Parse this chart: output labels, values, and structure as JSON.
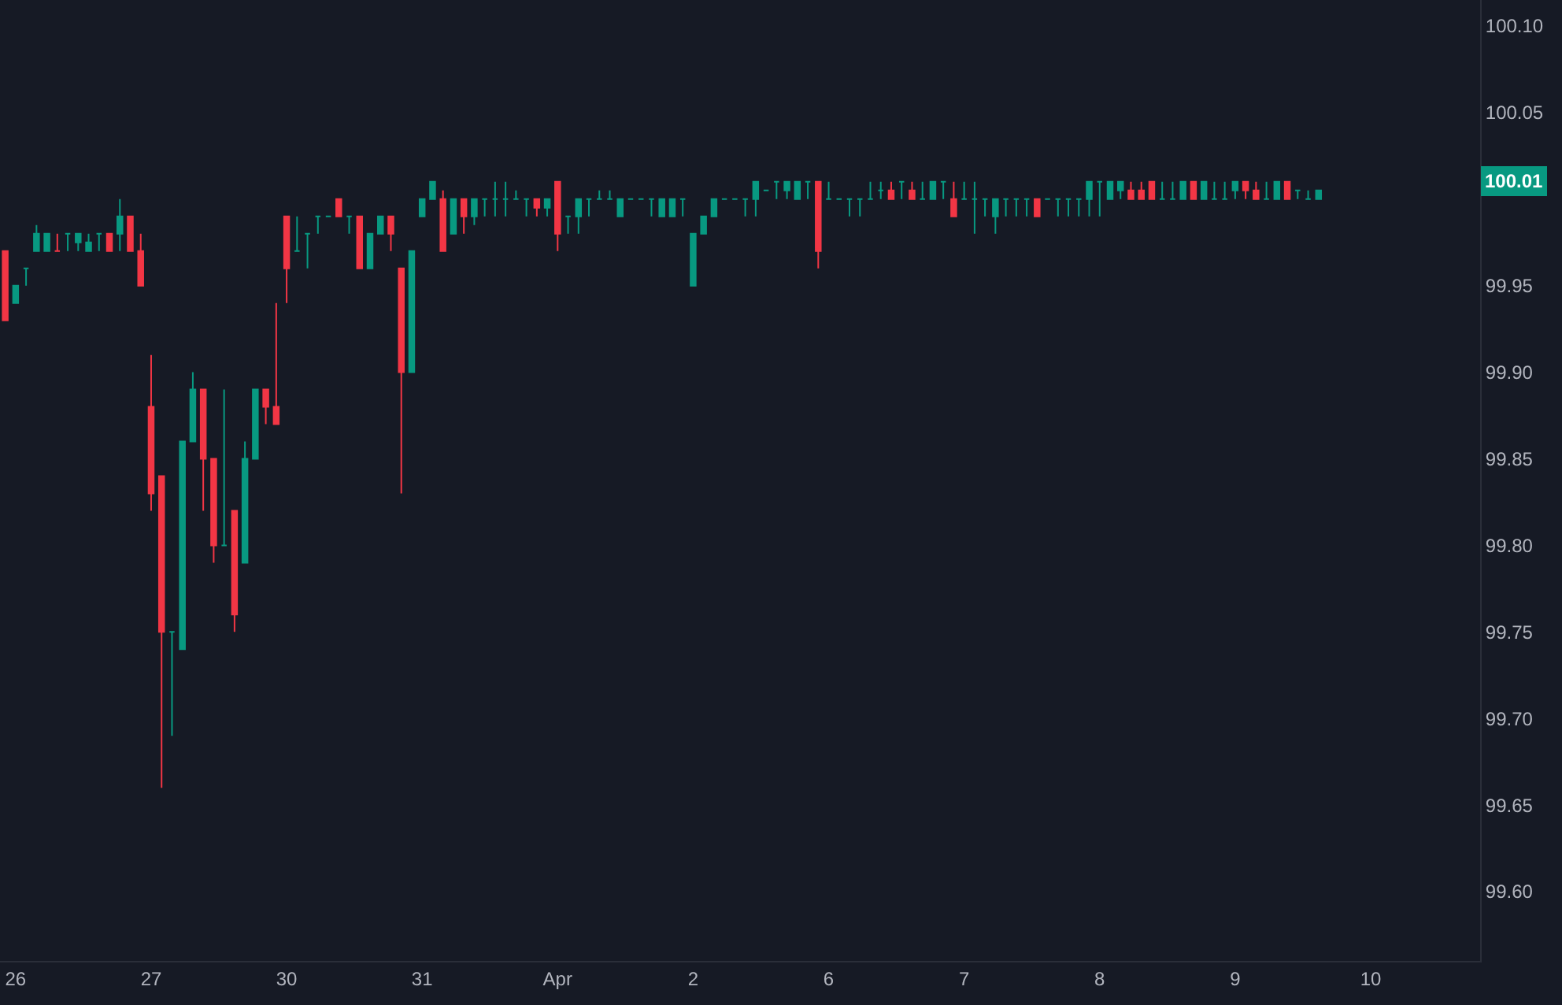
{
  "chart_data": {
    "type": "candlestick",
    "categories": [
      null,
      "26",
      null,
      null,
      null,
      null,
      null,
      null,
      null,
      null,
      null,
      null,
      null,
      null,
      "27",
      null,
      null,
      null,
      null,
      null,
      null,
      null,
      null,
      null,
      null,
      null,
      null,
      "30",
      null,
      null,
      null,
      null,
      null,
      null,
      null,
      null,
      null,
      null,
      null,
      null,
      "31",
      null,
      null,
      null,
      null,
      null,
      null,
      null,
      null,
      null,
      null,
      null,
      null,
      "Apr",
      null,
      null,
      null,
      null,
      null,
      null,
      null,
      null,
      null,
      null,
      null,
      null,
      "2",
      null,
      null,
      null,
      null,
      null,
      null,
      null,
      null,
      null,
      null,
      null,
      null,
      "6",
      null,
      null,
      null,
      null,
      null,
      null,
      null,
      null,
      null,
      null,
      null,
      null,
      "7",
      null,
      null,
      null,
      null,
      null,
      null,
      null,
      null,
      null,
      null,
      null,
      null,
      "8",
      null,
      null,
      null,
      null,
      null,
      null,
      null,
      null,
      null,
      null,
      null,
      null,
      "9",
      null,
      null,
      null,
      null,
      null,
      null,
      null,
      null,
      null,
      null,
      null,
      null,
      "10",
      null,
      null,
      null,
      null,
      null,
      null,
      null,
      null,
      null,
      null
    ],
    "ohlc": [
      [
        99.97,
        99.97,
        99.93,
        99.93
      ],
      [
        99.94,
        99.95,
        99.94,
        99.95
      ],
      [
        99.96,
        99.96,
        99.95,
        99.96
      ],
      [
        99.97,
        99.985,
        99.97,
        99.98
      ],
      [
        99.97,
        99.98,
        99.97,
        99.98
      ],
      [
        99.97,
        99.98,
        99.97,
        99.97
      ],
      [
        99.98,
        99.98,
        99.97,
        99.98
      ],
      [
        99.975,
        99.98,
        99.97,
        99.98
      ],
      [
        99.97,
        99.98,
        99.97,
        99.975
      ],
      [
        99.98,
        99.98,
        99.97,
        99.98
      ],
      [
        99.98,
        99.98,
        99.97,
        99.97
      ],
      [
        99.98,
        100.0,
        99.97,
        99.99
      ],
      [
        99.99,
        99.99,
        99.97,
        99.97
      ],
      [
        99.97,
        99.98,
        99.95,
        99.95
      ],
      [
        99.88,
        99.91,
        99.82,
        99.83
      ],
      [
        99.84,
        99.84,
        99.66,
        99.75
      ],
      [
        99.75,
        99.75,
        99.69,
        99.75
      ],
      [
        99.74,
        99.86,
        99.74,
        99.86
      ],
      [
        99.86,
        99.9,
        99.86,
        99.89
      ],
      [
        99.89,
        99.89,
        99.82,
        99.85
      ],
      [
        99.85,
        99.85,
        99.79,
        99.8
      ],
      [
        99.8,
        99.89,
        99.8,
        99.8
      ],
      [
        99.82,
        99.82,
        99.75,
        99.76
      ],
      [
        99.79,
        99.86,
        99.79,
        99.85
      ],
      [
        99.85,
        99.89,
        99.85,
        99.89
      ],
      [
        99.89,
        99.89,
        99.87,
        99.88
      ],
      [
        99.88,
        99.94,
        99.87,
        99.87
      ],
      [
        99.99,
        99.99,
        99.94,
        99.96
      ],
      [
        99.97,
        99.99,
        99.97,
        99.97
      ],
      [
        99.98,
        99.98,
        99.96,
        99.98
      ],
      [
        99.99,
        99.99,
        99.98,
        99.99
      ],
      [
        99.99,
        99.99,
        99.99,
        99.99
      ],
      [
        100.0,
        100.0,
        99.99,
        99.99
      ],
      [
        99.99,
        99.99,
        99.98,
        99.99
      ],
      [
        99.99,
        99.99,
        99.96,
        99.96
      ],
      [
        99.96,
        99.98,
        99.96,
        99.98
      ],
      [
        99.98,
        99.99,
        99.98,
        99.99
      ],
      [
        99.99,
        99.99,
        99.97,
        99.98
      ],
      [
        99.96,
        99.96,
        99.83,
        99.9
      ],
      [
        99.9,
        99.97,
        99.9,
        99.97
      ],
      [
        99.99,
        100.0,
        99.99,
        100.0
      ],
      [
        100.0,
        100.01,
        100.0,
        100.01
      ],
      [
        100.0,
        100.005,
        99.97,
        99.97
      ],
      [
        99.98,
        100.0,
        99.98,
        100.0
      ],
      [
        100.0,
        100.0,
        99.98,
        99.99
      ],
      [
        99.99,
        100.0,
        99.985,
        100.0
      ],
      [
        100.0,
        100.0,
        99.99,
        100.0
      ],
      [
        100.0,
        100.01,
        99.99,
        100.0
      ],
      [
        100.0,
        100.01,
        99.99,
        100.0
      ],
      [
        100.0,
        100.005,
        100.0,
        100.0
      ],
      [
        100.0,
        100.0,
        99.99,
        100.0
      ],
      [
        100.0,
        100.0,
        99.99,
        99.995
      ],
      [
        99.995,
        100.0,
        99.99,
        100.0
      ],
      [
        100.01,
        100.01,
        99.97,
        99.98
      ],
      [
        99.99,
        99.99,
        99.98,
        99.99
      ],
      [
        99.99,
        100.0,
        99.98,
        100.0
      ],
      [
        100.0,
        100.0,
        99.99,
        100.0
      ],
      [
        100.0,
        100.005,
        100.0,
        100.0
      ],
      [
        100.0,
        100.005,
        100.0,
        100.0
      ],
      [
        99.99,
        100.0,
        99.99,
        100.0
      ],
      [
        100.0,
        100.0,
        100.0,
        100.0
      ],
      [
        100.0,
        100.0,
        100.0,
        100.0
      ],
      [
        100.0,
        100.0,
        99.99,
        100.0
      ],
      [
        99.99,
        100.0,
        99.99,
        100.0
      ],
      [
        99.99,
        100.0,
        99.99,
        100.0
      ],
      [
        100.0,
        100.0,
        99.99,
        100.0
      ],
      [
        99.95,
        99.98,
        99.95,
        99.98
      ],
      [
        99.98,
        99.99,
        99.98,
        99.99
      ],
      [
        99.99,
        100.0,
        99.99,
        100.0
      ],
      [
        100.0,
        100.0,
        100.0,
        100.0
      ],
      [
        100.0,
        100.0,
        100.0,
        100.0
      ],
      [
        100.0,
        100.0,
        99.99,
        100.0
      ],
      [
        100.0,
        100.01,
        99.99,
        100.01
      ],
      [
        100.005,
        100.005,
        100.005,
        100.005
      ],
      [
        100.01,
        100.01,
        100.0,
        100.01
      ],
      [
        100.005,
        100.01,
        100.0,
        100.01
      ],
      [
        100.0,
        100.01,
        100.0,
        100.01
      ],
      [
        100.01,
        100.01,
        100.0,
        100.01
      ],
      [
        100.01,
        100.01,
        99.96,
        99.97
      ],
      [
        100.0,
        100.01,
        100.0,
        100.0
      ],
      [
        100.0,
        100.0,
        100.0,
        100.0
      ],
      [
        100.0,
        100.0,
        99.99,
        100.0
      ],
      [
        100.0,
        100.0,
        99.99,
        100.0
      ],
      [
        100.0,
        100.01,
        100.0,
        100.0
      ],
      [
        100.005,
        100.01,
        100.0,
        100.005
      ],
      [
        100.005,
        100.01,
        100.0,
        100.0
      ],
      [
        100.01,
        100.01,
        100.0,
        100.01
      ],
      [
        100.005,
        100.01,
        100.0,
        100.0
      ],
      [
        100.0,
        100.01,
        100.0,
        100.0
      ],
      [
        100.0,
        100.01,
        100.0,
        100.01
      ],
      [
        100.01,
        100.01,
        100.0,
        100.01
      ],
      [
        100.0,
        100.01,
        99.99,
        99.99
      ],
      [
        100.0,
        100.01,
        100.0,
        100.0
      ],
      [
        100.0,
        100.01,
        99.98,
        100.0
      ],
      [
        100.0,
        100.0,
        99.99,
        100.0
      ],
      [
        99.99,
        100.0,
        99.98,
        100.0
      ],
      [
        100.0,
        100.0,
        99.99,
        100.0
      ],
      [
        100.0,
        100.0,
        99.99,
        100.0
      ],
      [
        100.0,
        100.0,
        99.99,
        100.0
      ],
      [
        100.0,
        100.0,
        99.99,
        99.99
      ],
      [
        100.0,
        100.0,
        100.0,
        100.0
      ],
      [
        100.0,
        100.0,
        99.99,
        100.0
      ],
      [
        100.0,
        100.0,
        99.99,
        100.0
      ],
      [
        100.0,
        100.0,
        99.99,
        100.0
      ],
      [
        100.0,
        100.01,
        99.99,
        100.01
      ],
      [
        100.01,
        100.01,
        99.99,
        100.01
      ],
      [
        100.0,
        100.01,
        100.0,
        100.01
      ],
      [
        100.005,
        100.01,
        100.0,
        100.01
      ],
      [
        100.005,
        100.01,
        100.0,
        100.0
      ],
      [
        100.005,
        100.01,
        100.0,
        100.0
      ],
      [
        100.01,
        100.01,
        100.0,
        100.0
      ],
      [
        100.0,
        100.01,
        100.0,
        100.0
      ],
      [
        100.0,
        100.01,
        100.0,
        100.0
      ],
      [
        100.0,
        100.01,
        100.0,
        100.01
      ],
      [
        100.01,
        100.01,
        100.0,
        100.0
      ],
      [
        100.0,
        100.01,
        100.0,
        100.01
      ],
      [
        100.0,
        100.01,
        100.0,
        100.0
      ],
      [
        100.0,
        100.01,
        100.0,
        100.0
      ],
      [
        100.005,
        100.01,
        100.0,
        100.01
      ],
      [
        100.01,
        100.01,
        100.0,
        100.005
      ],
      [
        100.005,
        100.01,
        100.0,
        100.0
      ],
      [
        100.0,
        100.01,
        100.0,
        100.0
      ],
      [
        100.0,
        100.01,
        100.0,
        100.01
      ],
      [
        100.01,
        100.01,
        100.0,
        100.0
      ],
      [
        100.005,
        100.005,
        100.0,
        100.005
      ],
      [
        100.0,
        100.005,
        100.0,
        100.0
      ],
      [
        100.0,
        100.005,
        100.0,
        100.005
      ],
      null,
      null,
      null,
      null,
      null,
      null,
      null,
      null,
      null,
      null,
      null,
      null,
      null,
      null,
      null
    ],
    "colors": [
      "#f23645",
      "#089981",
      "#089981",
      "#089981",
      "#089981",
      "#f23645",
      "#089981",
      "#089981",
      "#089981",
      "#089981",
      "#f23645",
      "#089981",
      "#f23645",
      "#f23645",
      "#f23645",
      "#f23645",
      "#089981",
      "#089981",
      "#089981",
      "#f23645",
      "#f23645",
      "#089981",
      "#f23645",
      "#089981",
      "#089981",
      "#f23645",
      "#f23645",
      "#f23645",
      "#089981",
      "#089981",
      "#089981",
      "#089981",
      "#f23645",
      "#089981",
      "#f23645",
      "#089981",
      "#089981",
      "#f23645",
      "#f23645",
      "#089981",
      "#089981",
      "#089981",
      "#f23645",
      "#089981",
      "#f23645",
      "#089981",
      "#089981",
      "#089981",
      "#089981",
      "#089981",
      "#089981",
      "#f23645",
      "#089981",
      "#f23645",
      "#089981",
      "#089981",
      "#089981",
      "#089981",
      "#089981",
      "#089981",
      "#089981",
      "#089981",
      "#089981",
      "#089981",
      "#089981",
      "#089981",
      "#089981",
      "#089981",
      "#089981",
      "#089981",
      "#089981",
      "#089981",
      "#089981",
      "#089981",
      "#089981",
      "#089981",
      "#089981",
      "#089981",
      "#f23645",
      "#089981",
      "#089981",
      "#089981",
      "#089981",
      "#089981",
      "#089981",
      "#f23645",
      "#089981",
      "#f23645",
      "#089981",
      "#089981",
      "#089981",
      "#f23645",
      "#089981",
      "#089981",
      "#089981",
      "#089981",
      "#089981",
      "#089981",
      "#089981",
      "#f23645",
      "#089981",
      "#089981",
      "#089981",
      "#089981",
      "#089981",
      "#089981",
      "#089981",
      "#089981",
      "#f23645",
      "#f23645",
      "#f23645",
      "#089981",
      "#089981",
      "#089981",
      "#f23645",
      "#089981",
      "#089981",
      "#089981",
      "#089981",
      "#f23645",
      "#f23645",
      "#089981",
      "#089981",
      "#f23645",
      "#089981",
      "#089981",
      "#089981",
      null,
      null,
      null,
      null,
      null,
      null,
      null,
      null,
      null,
      null,
      null,
      null,
      null,
      null,
      null
    ],
    "ylim": [
      99.56,
      100.115
    ],
    "yticks": [
      {
        "value": 99.6,
        "label": "99.60"
      },
      99.65,
      {
        "value": 99.7,
        "label": "99.70"
      },
      99.75,
      {
        "value": 99.8,
        "label": "99.80"
      },
      99.85,
      {
        "value": 99.9,
        "label": "99.90"
      },
      99.95,
      100.05,
      {
        "value": 100.1,
        "label": "100.10"
      }
    ],
    "annotations": [
      {
        "text": "100.01",
        "y": 100.01
      }
    ]
  }
}
